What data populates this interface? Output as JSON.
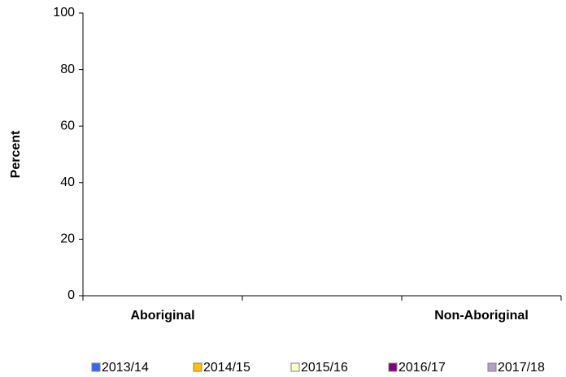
{
  "chart_data": {
    "type": "bar",
    "ylabel": "Percent",
    "categories": [
      "Aboriginal",
      null,
      "Non-Aboriginal"
    ],
    "series": [
      {
        "name": "2013/14",
        "color": "#3366ff",
        "values": [
          null,
          null,
          null
        ]
      },
      {
        "name": "2014/15",
        "color": "#ffc000",
        "values": [
          null,
          null,
          null
        ]
      },
      {
        "name": "2015/16",
        "color": "#ffffcc",
        "values": [
          null,
          null,
          null
        ]
      },
      {
        "name": "2016/17",
        "color": "#800080",
        "values": [
          null,
          null,
          null
        ]
      },
      {
        "name": "2017/18",
        "color": "#b3a2c7",
        "values": [
          null,
          null,
          null
        ]
      }
    ],
    "ylim": [
      0,
      100
    ],
    "yticks": [
      0,
      20,
      40,
      60,
      80,
      100
    ],
    "grid": false
  }
}
